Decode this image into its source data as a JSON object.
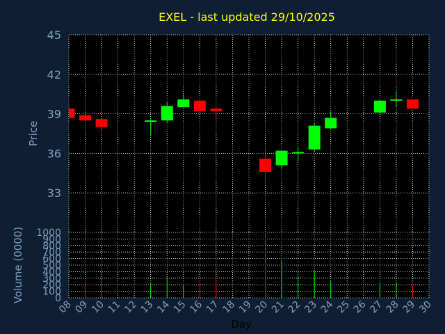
{
  "chart_data": {
    "type": "candlestick",
    "title": "EXEL - last updated 29/10/2025",
    "xlabel": "Day",
    "ylabel": "Price",
    "vlabel": "Volume (0000)",
    "x_ticks": [
      "08",
      "09",
      "10",
      "11",
      "12",
      "13",
      "14",
      "15",
      "16",
      "17",
      "18",
      "19",
      "20",
      "21",
      "22",
      "23",
      "24",
      "25",
      "26",
      "27",
      "28",
      "29",
      "30"
    ],
    "ylim": [
      30,
      45
    ],
    "y_ticks": [
      33,
      36,
      39,
      42,
      45
    ],
    "vlim": [
      0,
      1000
    ],
    "v_ticks": [
      0,
      100,
      200,
      300,
      400,
      500,
      600,
      700,
      800,
      900,
      1000
    ],
    "grid": true,
    "colors": {
      "up": "#00ff00",
      "down": "#ff0000",
      "background": "#0f1f33",
      "plot": "#000000",
      "grid": "#ffffff",
      "title": "#ffff00",
      "axis_text": "#7f9fbf"
    },
    "candles": [
      {
        "day": "08",
        "open": 39.4,
        "high": 39.4,
        "low": 38.7,
        "close": 38.7,
        "volume": 0
      },
      {
        "day": "09",
        "open": 38.9,
        "high": 38.9,
        "low": 38.5,
        "close": 38.5,
        "volume": 210
      },
      {
        "day": "10",
        "open": 38.6,
        "high": 38.6,
        "low": 37.7,
        "close": 38.0,
        "volume": 310
      },
      {
        "day": "13",
        "open": 38.4,
        "high": 38.6,
        "low": 37.4,
        "close": 38.5,
        "volume": 230
      },
      {
        "day": "14",
        "open": 38.5,
        "high": 39.9,
        "low": 38.3,
        "close": 39.6,
        "volume": 320
      },
      {
        "day": "15",
        "open": 39.5,
        "high": 40.6,
        "low": 39.5,
        "close": 40.1,
        "volume": 190
      },
      {
        "day": "16",
        "open": 40.0,
        "high": 40.0,
        "low": 39.2,
        "close": 39.2,
        "volume": 240
      },
      {
        "day": "17",
        "open": 39.4,
        "high": 39.4,
        "low": 38.7,
        "close": 39.2,
        "volume": 250
      },
      {
        "day": "20",
        "open": 35.6,
        "high": 36.2,
        "low": 33.7,
        "close": 34.6,
        "volume": 1000
      },
      {
        "day": "21",
        "open": 35.1,
        "high": 36.2,
        "low": 34.8,
        "close": 36.2,
        "volume": 580
      },
      {
        "day": "22",
        "open": 36.0,
        "high": 36.5,
        "low": 35.4,
        "close": 36.1,
        "volume": 320
      },
      {
        "day": "23",
        "open": 36.3,
        "high": 38.3,
        "low": 36.1,
        "close": 38.1,
        "volume": 410
      },
      {
        "day": "24",
        "open": 37.9,
        "high": 39.2,
        "low": 37.8,
        "close": 38.7,
        "volume": 260
      },
      {
        "day": "27",
        "open": 39.1,
        "high": 40.1,
        "low": 39.0,
        "close": 40.0,
        "volume": 230
      },
      {
        "day": "28",
        "open": 40.1,
        "high": 40.7,
        "low": 39.5,
        "close": 40.1,
        "volume": 240
      },
      {
        "day": "29",
        "open": 40.1,
        "high": 40.1,
        "low": 39.4,
        "close": 39.4,
        "volume": 200
      }
    ]
  }
}
